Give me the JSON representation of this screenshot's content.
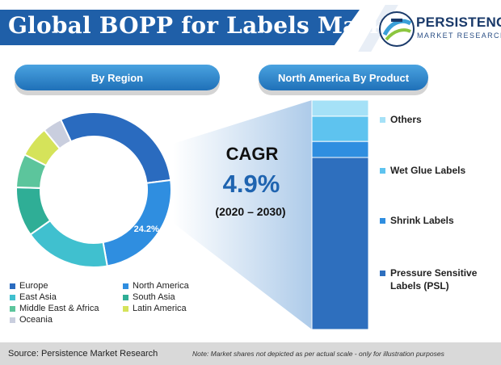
{
  "title": "Global BOPP for Labels Market",
  "logo": {
    "main": "PERSISTENCE",
    "sub": "MARKET RESEARCH"
  },
  "panels": {
    "left_title": "By Region",
    "right_title": "North America By Product"
  },
  "cagr": {
    "label": "CAGR",
    "value": "4.9%",
    "period": "(2020 – 2030)"
  },
  "footer": {
    "source": "Source: Persistence Market Research",
    "note": "Note: Market shares not depicted as per actual scale - only for illustration purposes"
  },
  "colors": {
    "brand_blue": "#1f5fa8",
    "europe": "#2a6bbf",
    "north_america": "#2f8ee0",
    "east_asia": "#40c0cf",
    "south_asia": "#2fae96",
    "middle_east_africa": "#5cc59c",
    "latin_america": "#d5e35a",
    "oceania": "#c9cede"
  },
  "chart_data": [
    {
      "type": "pie",
      "title": "By Region",
      "donut": true,
      "slices": [
        {
          "name": "Europe",
          "value": 30.0,
          "color": "#2a6bbf"
        },
        {
          "name": "North America",
          "value": 24.2,
          "color": "#2f8ee0",
          "label": "24.2%"
        },
        {
          "name": "East Asia",
          "value": 18.0,
          "color": "#40c0cf"
        },
        {
          "name": "South Asia",
          "value": 10.3,
          "color": "#2fae96"
        },
        {
          "name": "Middle East & Africa",
          "value": 7.0,
          "color": "#5cc59c"
        },
        {
          "name": "Latin America",
          "value": 6.5,
          "color": "#d5e35a"
        },
        {
          "name": "Oceania",
          "value": 4.0,
          "color": "#c9cede"
        }
      ],
      "legend": [
        "Europe",
        "North America",
        "East Asia",
        "South Asia",
        "Middle East & Africa",
        "Latin America",
        "Oceania"
      ],
      "legend_placement": "bottom"
    },
    {
      "type": "bar",
      "stacked": true,
      "title": "North America By Product",
      "categories": [
        "North America"
      ],
      "series": [
        {
          "name": "Pressure Sensitive Labels (PSL)",
          "values": [
            75
          ],
          "color": "#2e6fbe"
        },
        {
          "name": "Shrink Labels",
          "values": [
            7
          ],
          "color": "#2f8ee0"
        },
        {
          "name": "Wet Glue Labels",
          "values": [
            11
          ],
          "color": "#5ec3ef"
        },
        {
          "name": "Others",
          "values": [
            7
          ],
          "color": "#a5e1f7"
        }
      ],
      "legend_placement": "right"
    }
  ]
}
